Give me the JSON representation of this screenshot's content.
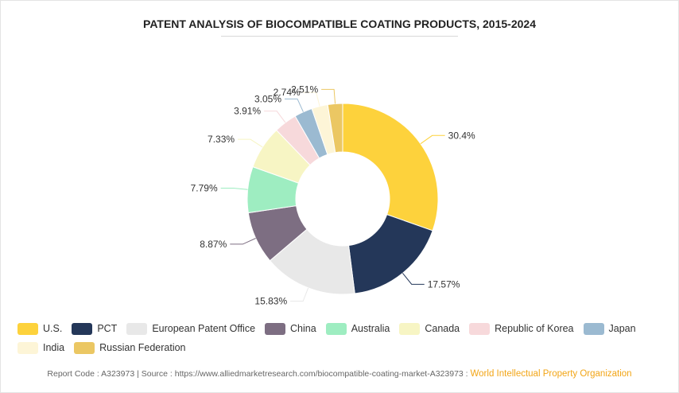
{
  "chart_data": {
    "type": "pie",
    "title": "PATENT ANALYSIS OF BIOCOMPATIBLE COATING PRODUCTS, 2015-2024",
    "categories": [
      "U.S.",
      "PCT",
      "European Patent Office",
      "China",
      "Australia",
      "Canada",
      "Republic of Korea",
      "Japan",
      "India",
      "Russian Federation"
    ],
    "values": [
      30.4,
      17.57,
      15.83,
      8.87,
      7.79,
      7.33,
      3.91,
      3.05,
      2.74,
      2.51
    ],
    "labels": [
      "30.4%",
      "17.57%",
      "15.83%",
      "8.87%",
      "7.79%",
      "7.33%",
      "3.91%",
      "3.05%",
      "2.74%",
      "2.51%"
    ],
    "colors": [
      "#fdd23c",
      "#243759",
      "#e8e8e8",
      "#7d6e82",
      "#9eedc1",
      "#f7f5c4",
      "#f7d9db",
      "#9bbad1",
      "#fdf5d7",
      "#ebc763"
    ],
    "donut": true,
    "legend_position": "bottom"
  },
  "footer": {
    "text": "Report Code : A323973  |  Source : https://www.alliedmarketresearch.com/biocompatible-coating-market-A323973 : ",
    "source_org": "World Intellectual Property Organization"
  }
}
